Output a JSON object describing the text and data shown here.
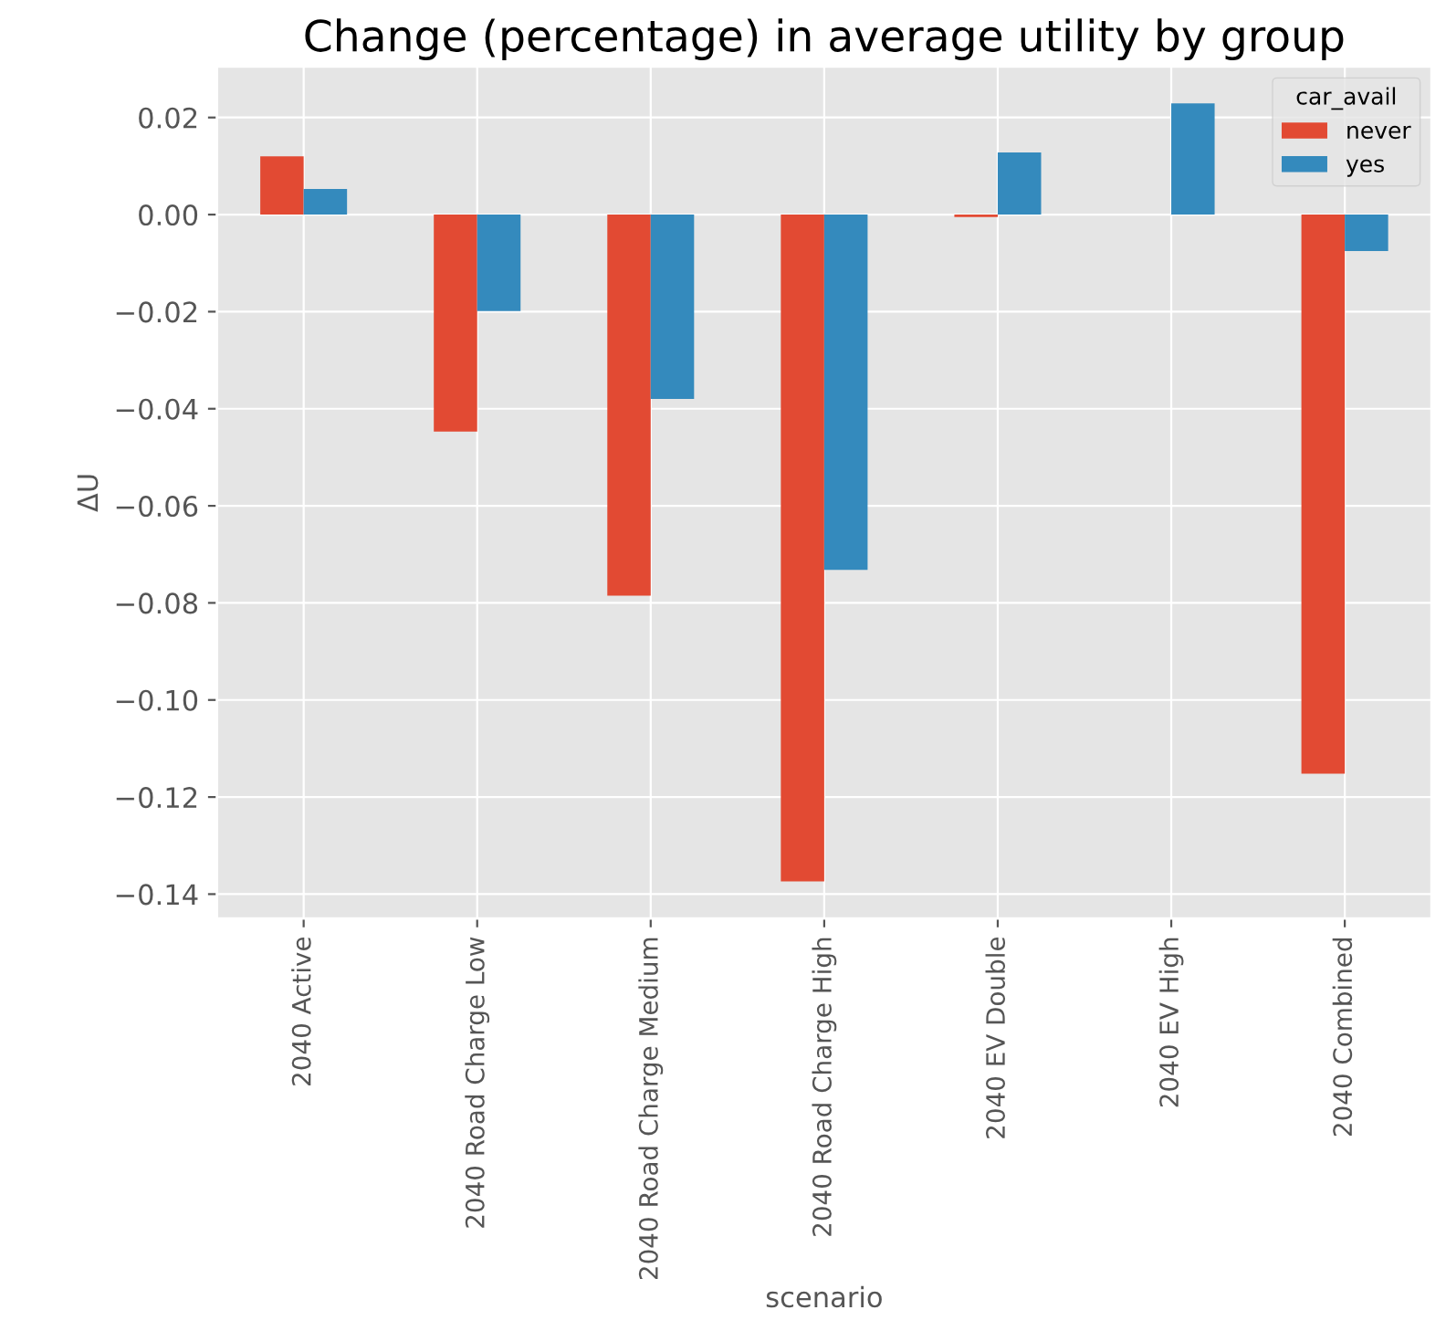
{
  "chart_data": {
    "type": "bar",
    "title": "Change (percentage) in average utility by group",
    "xlabel": "scenario",
    "ylabel": "ΔU",
    "legend_title": "car_avail",
    "categories": [
      "2040 Active",
      "2040 Road Charge Low",
      "2040 Road Charge Medium",
      "2040 Road Charge High",
      "2040 EV Double",
      "2040 EV High",
      "2040 Combined"
    ],
    "series": [
      {
        "name": "never",
        "color": "#e24a33",
        "values": [
          0.012,
          -0.0447,
          -0.0785,
          -0.1374,
          -0.0005,
          0.0,
          -0.1152
        ]
      },
      {
        "name": "yes",
        "color": "#348abd",
        "values": [
          0.0053,
          -0.0199,
          -0.038,
          -0.0732,
          0.0128,
          0.0229,
          -0.0075
        ]
      }
    ],
    "ylim": [
      -0.145,
      0.0305
    ],
    "yticks": [
      {
        "value": -0.14,
        "label": "−0.14"
      },
      {
        "value": -0.12,
        "label": "−0.12"
      },
      {
        "value": -0.1,
        "label": "−0.10"
      },
      {
        "value": -0.08,
        "label": "−0.08"
      },
      {
        "value": -0.06,
        "label": "−0.06"
      },
      {
        "value": -0.04,
        "label": "−0.04"
      },
      {
        "value": -0.02,
        "label": "−0.02"
      },
      {
        "value": 0,
        "label": "0.00"
      },
      {
        "value": 0.02,
        "label": "0.02"
      }
    ],
    "grid": true,
    "legend": "top right"
  }
}
